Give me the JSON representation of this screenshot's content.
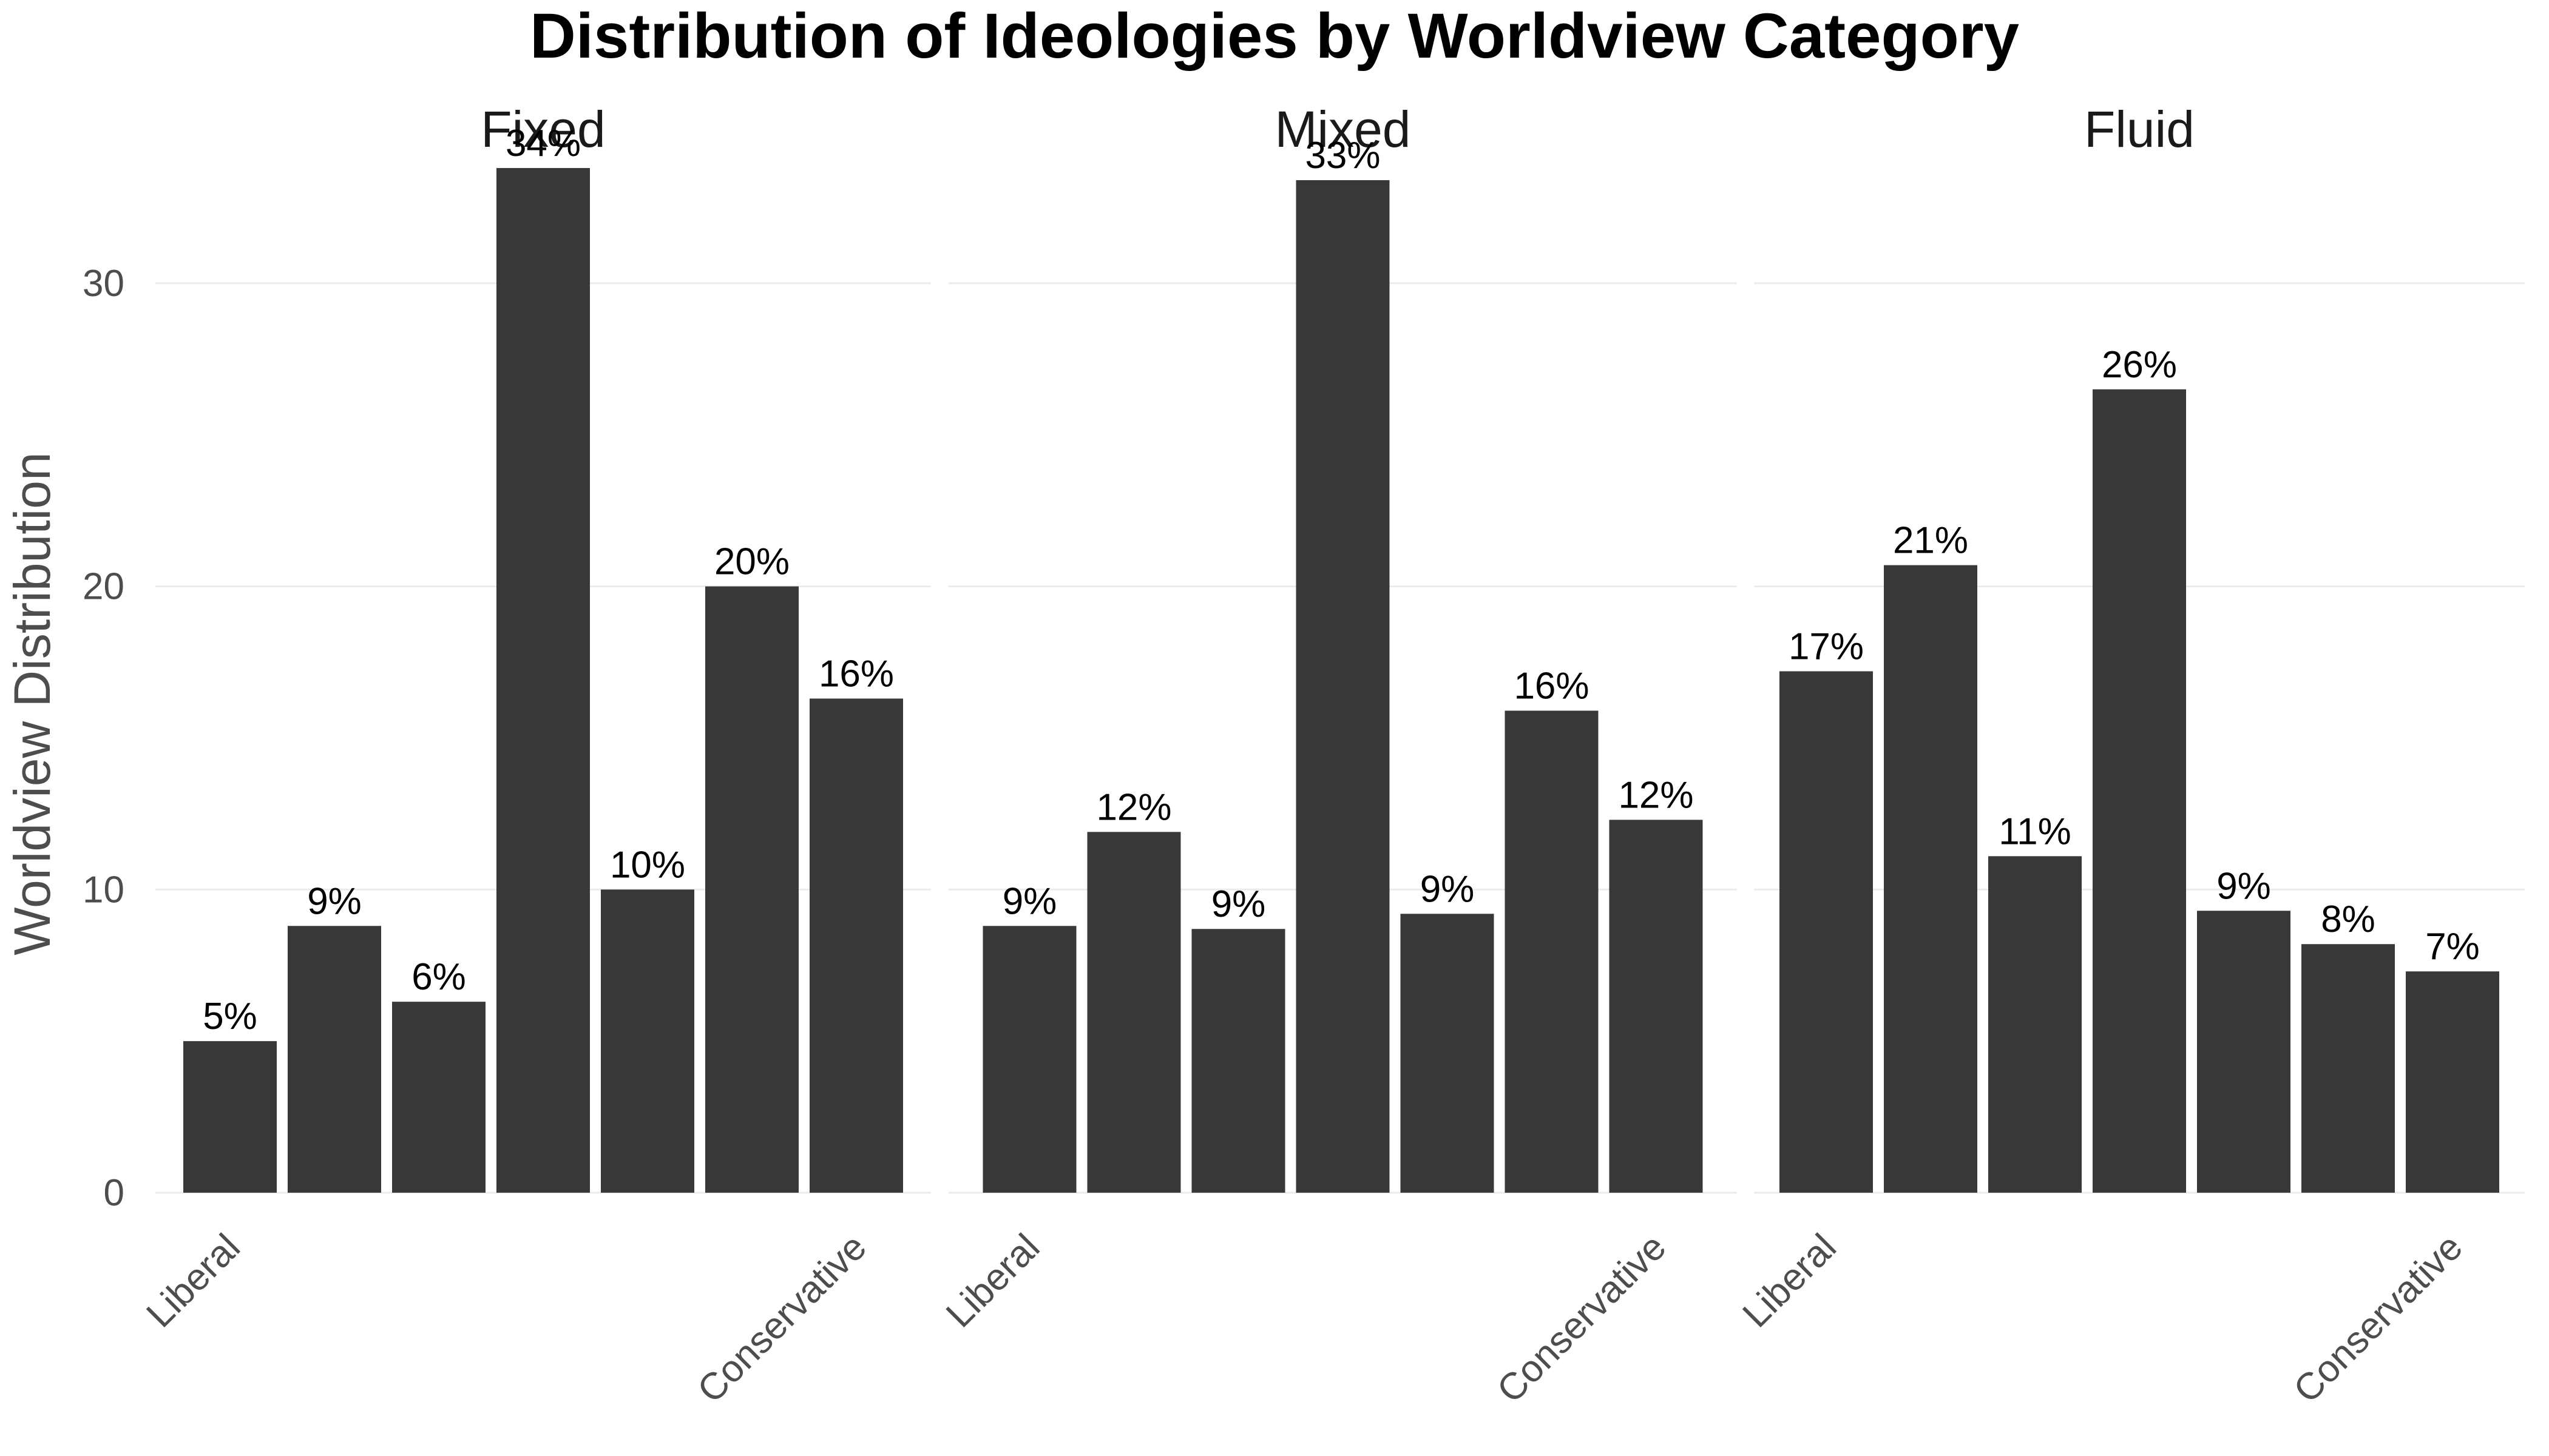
{
  "chart_data": {
    "type": "bar",
    "title": "Distribution of Ideologies by Worldview Category",
    "xlabel": "",
    "ylabel": "Worldview Distribution",
    "ylim": [
      0,
      35
    ],
    "y_ticks": [
      0,
      10,
      20,
      30
    ],
    "grid": true,
    "bar_color": "#383838",
    "x_tick_labels": [
      "Liberal",
      "",
      "",
      "",
      "",
      "",
      "Conservative"
    ],
    "facets": [
      {
        "name": "Fixed",
        "values": [
          5.0,
          8.8,
          6.3,
          33.8,
          10.0,
          20.0,
          16.3
        ],
        "labels": [
          "5%",
          "9%",
          "6%",
          "34%",
          "10%",
          "20%",
          "16%"
        ]
      },
      {
        "name": "Mixed",
        "values": [
          8.8,
          11.9,
          8.7,
          33.4,
          9.2,
          15.9,
          12.3
        ],
        "labels": [
          "9%",
          "12%",
          "9%",
          "33%",
          "9%",
          "16%",
          "12%"
        ]
      },
      {
        "name": "Fluid",
        "values": [
          17.2,
          20.7,
          11.1,
          26.5,
          9.3,
          8.2,
          7.3
        ],
        "labels": [
          "17%",
          "21%",
          "11%",
          "26%",
          "9%",
          "8%",
          "7%"
        ]
      }
    ]
  }
}
